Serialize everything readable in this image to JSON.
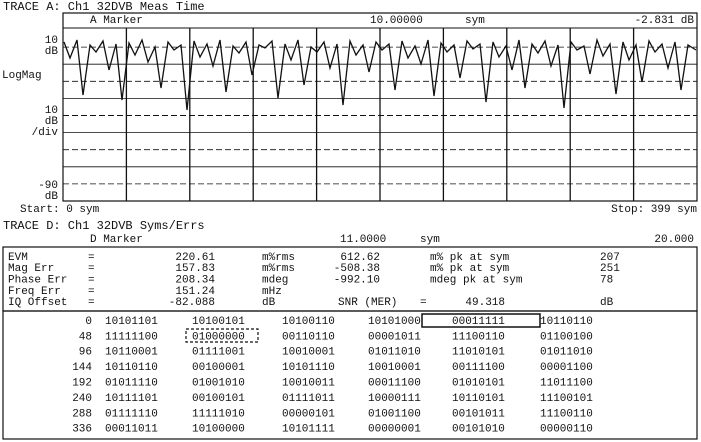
{
  "trace_a": {
    "header": "TRACE A: Ch1 32DVB Meas Time",
    "marker_label": "A Marker",
    "marker_x": "10.00000",
    "marker_unit": "sym",
    "marker_value": "-2.831 dB",
    "ref_top": "10",
    "ref_top_unit": "dB",
    "format": "LogMag",
    "scale": "10",
    "scale_unit": "dB",
    "scale_div": "/div",
    "ref_bottom": "-90",
    "ref_bottom_unit": "dB",
    "start": "Start: 0 sym",
    "stop": "Stop: 399 sym"
  },
  "trace_d": {
    "header": "TRACE D: Ch1 32DVB Syms/Errs",
    "marker_label": "D Marker",
    "marker_x": "11.0000",
    "marker_unit": "sym",
    "marker_value": "20.000",
    "errors": [
      [
        "EVM",
        "=",
        "220.61",
        "m%rms",
        "612.62",
        "m% pk at sym",
        "207"
      ],
      [
        "Mag Err",
        "=",
        "157.83",
        "m%rms",
        "-508.38",
        "m% pk at sym",
        "251"
      ],
      [
        "Phase Err",
        "=",
        "208.34",
        "mdeg",
        "-992.10",
        "mdeg pk at sym",
        "78"
      ],
      [
        "Freq Err",
        "=",
        "151.24",
        "mHz"
      ],
      [
        "IQ Offset",
        "=",
        "-82.088",
        "dB",
        "SNR (MER)",
        "=",
        "49.318",
        "dB"
      ]
    ],
    "symbols": [
      {
        "index": 0,
        "groups": [
          "10101101",
          "10100101",
          "10100110",
          "10101000",
          "00011111",
          "10110110"
        ]
      },
      {
        "index": 48,
        "groups": [
          "11111100",
          "01000000",
          "00110110",
          "00001011",
          "11100110",
          "01100100"
        ]
      },
      {
        "index": 96,
        "groups": [
          "10110001",
          "01111001",
          "10010001",
          "01011010",
          "11010101",
          "01011010"
        ]
      },
      {
        "index": 144,
        "groups": [
          "10110110",
          "00100001",
          "10101110",
          "10010001",
          "00111100",
          "00001100"
        ]
      },
      {
        "index": 192,
        "groups": [
          "01011110",
          "01001010",
          "10010011",
          "00011100",
          "01010101",
          "11011100"
        ]
      },
      {
        "index": 240,
        "groups": [
          "10111101",
          "00100101",
          "01111011",
          "10000111",
          "10110101",
          "11100101"
        ]
      },
      {
        "index": 288,
        "groups": [
          "01111110",
          "11111010",
          "00000101",
          "01001100",
          "00101011",
          "11100110"
        ]
      },
      {
        "index": 336,
        "groups": [
          "00011011",
          "10100000",
          "10101111",
          "00000001",
          "00101010",
          "00000110"
        ]
      }
    ]
  }
}
